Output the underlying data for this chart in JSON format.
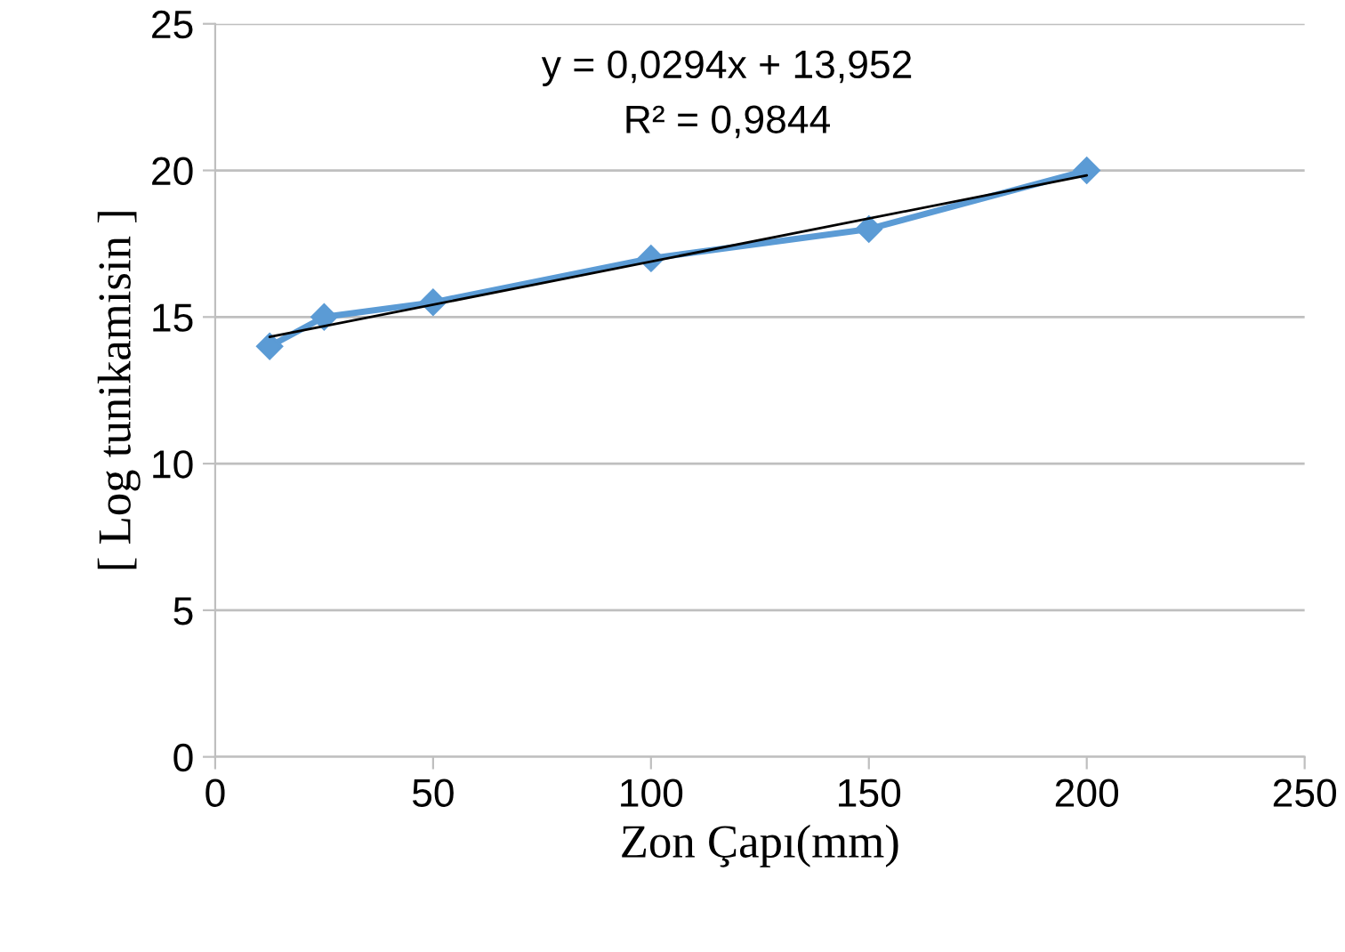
{
  "chart_data": {
    "type": "line",
    "xlabel": "Zon Çapı(mm)",
    "ylabel": "[ Log tunikamisin ]",
    "annotations": [
      "y = 0,0294x + 13,952",
      "R² = 0,9844"
    ],
    "series": [
      {
        "color": "#5b9bd5",
        "x": [
          12.5,
          25,
          50,
          100,
          150,
          200
        ],
        "values": [
          14,
          15,
          15.5,
          17,
          18,
          20
        ],
        "marker": "diamond"
      },
      {
        "type": "line",
        "color": "#000000",
        "x": [
          12.5,
          200
        ],
        "values": [
          14.32,
          19.83
        ],
        "marker": "none"
      }
    ],
    "xlim": [
      0,
      250
    ],
    "ylim": [
      0,
      25
    ],
    "xticks": [
      0,
      50,
      100,
      150,
      200,
      250
    ],
    "yticks": [
      0,
      5,
      10,
      15,
      20,
      25
    ],
    "grid": "y",
    "legend": false,
    "line_style": "solid"
  }
}
